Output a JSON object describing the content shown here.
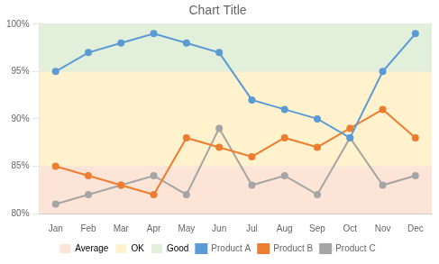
{
  "chart_data": {
    "type": "line",
    "title": "Chart Title",
    "categories": [
      "Jan",
      "Feb",
      "Mar",
      "Apr",
      "May",
      "Jun",
      "Jul",
      "Aug",
      "Sep",
      "Oct",
      "Nov",
      "Dec"
    ],
    "series": [
      {
        "name": "Product A",
        "color": "#5b9bd5",
        "marker": "circle",
        "values": [
          95,
          97,
          98,
          99,
          98,
          97,
          92,
          91,
          90,
          88,
          95,
          99
        ]
      },
      {
        "name": "Product B",
        "color": "#ed7d31",
        "marker": "circle",
        "values": [
          85,
          84,
          83,
          82,
          88,
          87,
          86,
          88,
          87,
          89,
          91,
          88
        ]
      },
      {
        "name": "Product C",
        "color": "#a5a5a5",
        "marker": "circle",
        "values": [
          81,
          82,
          83,
          84,
          82,
          89,
          83,
          84,
          82,
          88,
          83,
          84
        ]
      }
    ],
    "bands": [
      {
        "name": "Average",
        "range": [
          80,
          85
        ],
        "color": "#fce4d6"
      },
      {
        "name": "OK",
        "range": [
          85,
          95
        ],
        "color": "#fff2cc"
      },
      {
        "name": "Good",
        "range": [
          95,
          100
        ],
        "color": "#e2efda"
      }
    ],
    "ylim": [
      80,
      100
    ],
    "yticks": [
      {
        "value": 80,
        "label": "80%"
      },
      {
        "value": 85,
        "label": "85%"
      },
      {
        "value": 90,
        "label": "90%"
      },
      {
        "value": 95,
        "label": "95%"
      },
      {
        "value": 100,
        "label": "100%"
      }
    ],
    "grid": "y",
    "legend": "bottom"
  }
}
